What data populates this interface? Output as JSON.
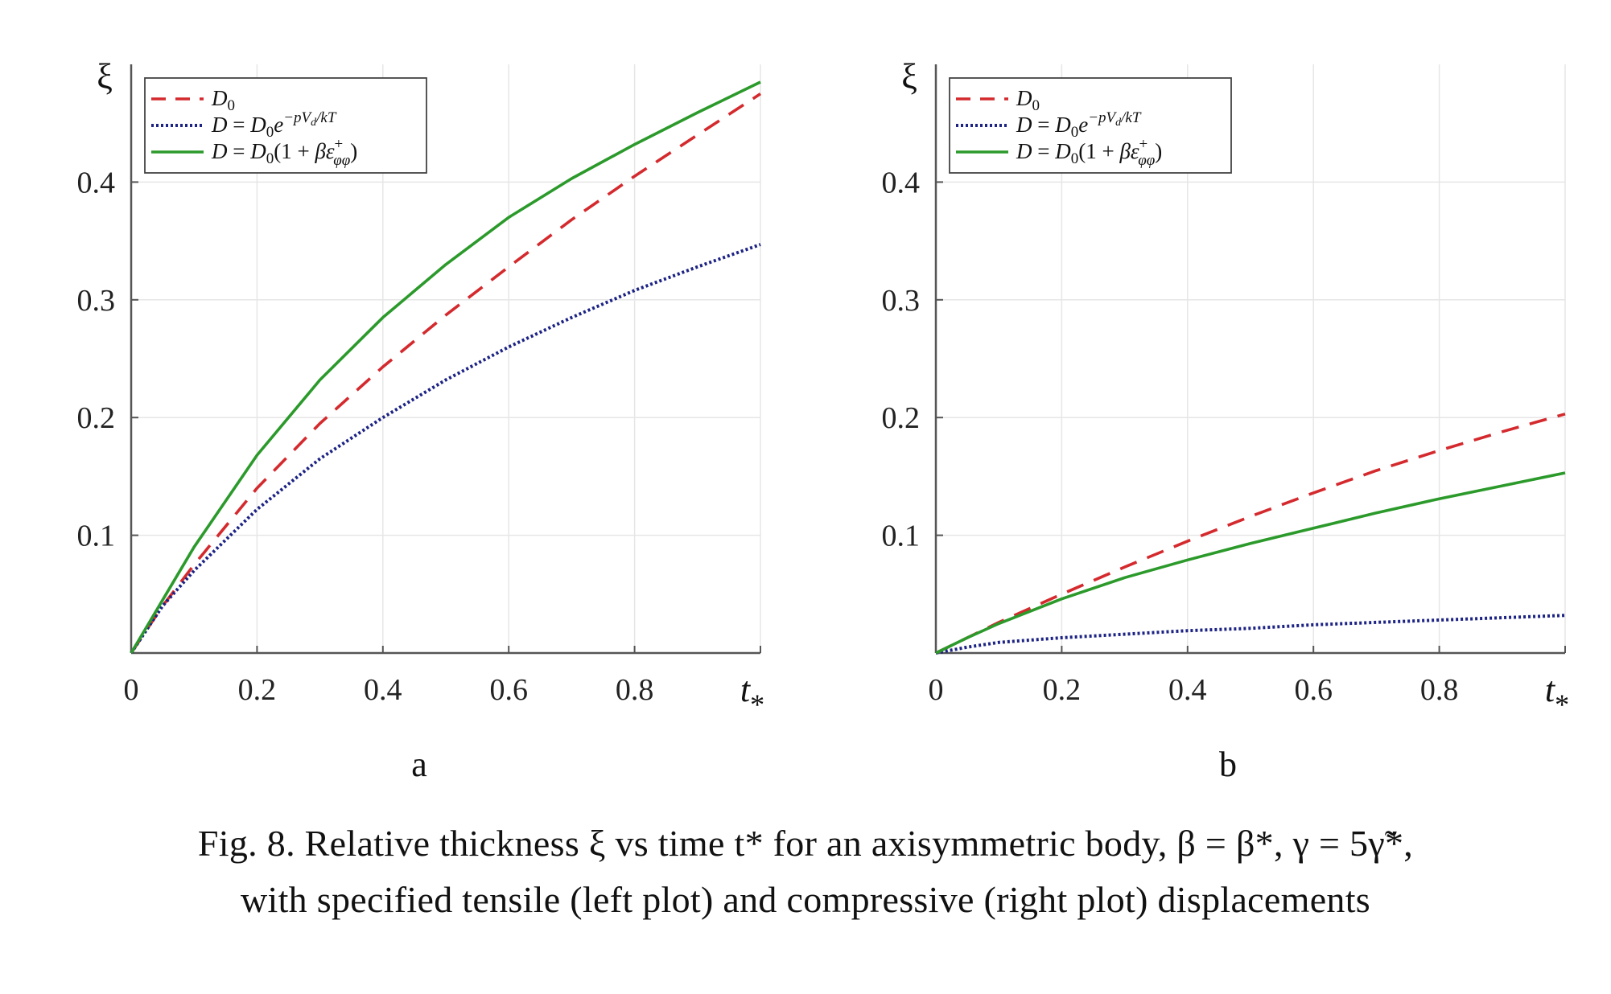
{
  "figure": {
    "caption_line1": "Fig. 8. Relative thickness ξ vs time t* for an axisymmetric body, β = β*, γ = 5γ̃*,",
    "caption_line2": "with specified tensile (left plot) and compressive (right plot) displacements"
  },
  "colors": {
    "D0": "#d42a2e",
    "exp": "#1c2384",
    "strain": "#2b9a2b",
    "axis": "#555555",
    "grid": "#e6e6e6"
  },
  "chart_data": [
    {
      "type": "line",
      "panel": "a",
      "xlabel": "t*",
      "ylabel": "ξ",
      "xlim": [
        0,
        1
      ],
      "ylim": [
        0,
        0.5
      ],
      "xticks": [
        "0",
        "0.2",
        "0.4",
        "0.6",
        "0.8"
      ],
      "yticks": [
        "0.1",
        "0.2",
        "0.3",
        "0.4"
      ],
      "grid": true,
      "legend_position": "top-left",
      "series": [
        {
          "name": "D0",
          "style": "dashed",
          "color_key": "D0",
          "x": [
            0,
            0.05,
            0.1,
            0.2,
            0.3,
            0.4,
            0.5,
            0.6,
            0.7,
            0.8,
            0.9,
            1.0
          ],
          "y": [
            0,
            0.04,
            0.075,
            0.14,
            0.195,
            0.243,
            0.287,
            0.328,
            0.368,
            0.405,
            0.44,
            0.475
          ]
        },
        {
          "name": "D = D0 e^(−pVd/kT)",
          "style": "dotted",
          "color_key": "exp",
          "x": [
            0,
            0.05,
            0.1,
            0.2,
            0.3,
            0.4,
            0.5,
            0.6,
            0.7,
            0.8,
            0.9,
            1.0
          ],
          "y": [
            0,
            0.04,
            0.07,
            0.122,
            0.165,
            0.2,
            0.232,
            0.26,
            0.285,
            0.308,
            0.328,
            0.347
          ]
        },
        {
          "name": "D = D0(1 + βε+φφ)",
          "style": "solid",
          "color_key": "strain",
          "x": [
            0,
            0.05,
            0.1,
            0.2,
            0.3,
            0.4,
            0.5,
            0.6,
            0.7,
            0.8,
            0.9,
            1.0
          ],
          "y": [
            0,
            0.045,
            0.09,
            0.168,
            0.232,
            0.285,
            0.33,
            0.37,
            0.403,
            0.432,
            0.459,
            0.485
          ]
        }
      ]
    },
    {
      "type": "line",
      "panel": "b",
      "xlabel": "t*",
      "ylabel": "ξ",
      "xlim": [
        0,
        1
      ],
      "ylim": [
        0,
        0.5
      ],
      "xticks": [
        "0",
        "0.2",
        "0.4",
        "0.6",
        "0.8"
      ],
      "yticks": [
        "0.1",
        "0.2",
        "0.3",
        "0.4"
      ],
      "grid": true,
      "legend_position": "top-left",
      "series": [
        {
          "name": "D0",
          "style": "dashed",
          "color_key": "D0",
          "x": [
            0,
            0.05,
            0.1,
            0.2,
            0.3,
            0.4,
            0.5,
            0.6,
            0.7,
            0.8,
            0.9,
            1.0
          ],
          "y": [
            0,
            0.013,
            0.026,
            0.05,
            0.073,
            0.095,
            0.116,
            0.136,
            0.155,
            0.172,
            0.188,
            0.203
          ]
        },
        {
          "name": "D = D0 e^(−pVd/kT)",
          "style": "dotted",
          "color_key": "exp",
          "x": [
            0,
            0.05,
            0.1,
            0.2,
            0.3,
            0.4,
            0.5,
            0.6,
            0.7,
            0.8,
            0.9,
            1.0
          ],
          "y": [
            0,
            0.005,
            0.009,
            0.013,
            0.016,
            0.019,
            0.021,
            0.024,
            0.026,
            0.028,
            0.03,
            0.032
          ]
        },
        {
          "name": "D = D0(1 + βε+φφ)",
          "style": "solid",
          "color_key": "strain",
          "x": [
            0,
            0.05,
            0.1,
            0.2,
            0.3,
            0.4,
            0.5,
            0.6,
            0.7,
            0.8,
            0.9,
            1.0
          ],
          "y": [
            0,
            0.013,
            0.025,
            0.046,
            0.064,
            0.079,
            0.093,
            0.106,
            0.119,
            0.131,
            0.142,
            0.153
          ]
        }
      ]
    }
  ]
}
